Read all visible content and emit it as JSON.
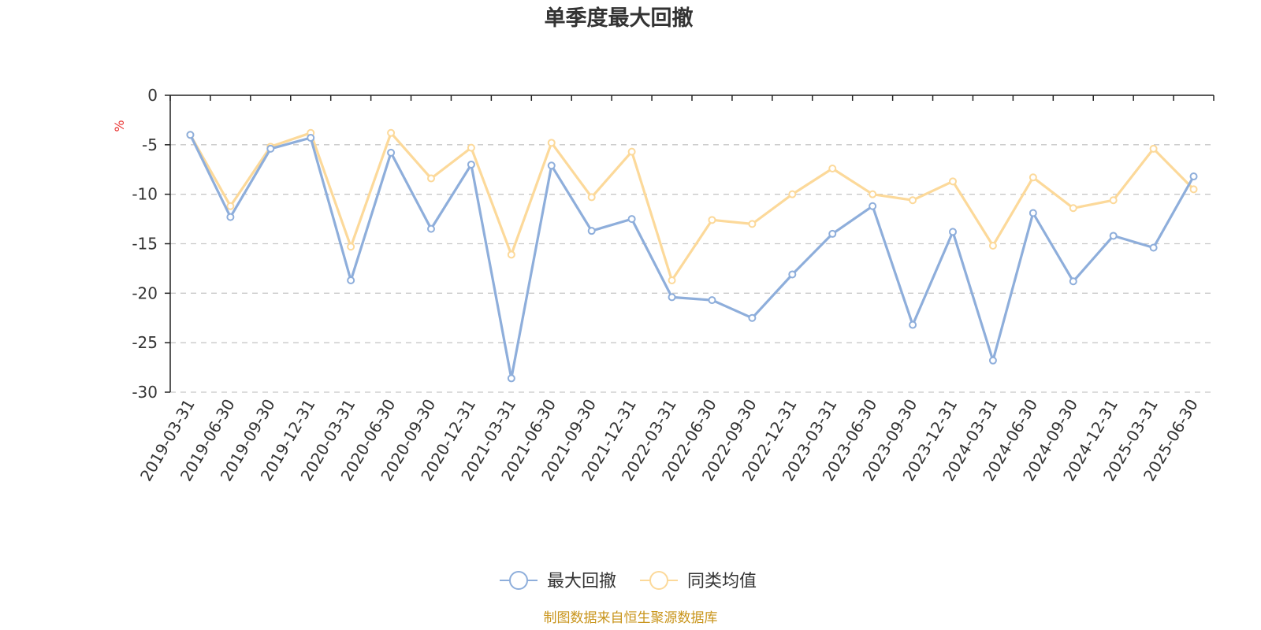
{
  "chart_data": {
    "type": "line",
    "title": "单季度最大回撤",
    "ylabel": "%",
    "ylim": [
      -30,
      0
    ],
    "yticks": [
      0,
      -5,
      -10,
      -15,
      -20,
      -25,
      -30
    ],
    "grid": true,
    "legend_position": "bottom",
    "categories": [
      "2019-03-31",
      "2019-06-30",
      "2019-09-30",
      "2019-12-31",
      "2020-03-31",
      "2020-06-30",
      "2020-09-30",
      "2020-12-31",
      "2021-03-31",
      "2021-06-30",
      "2021-09-30",
      "2021-12-31",
      "2022-03-31",
      "2022-06-30",
      "2022-09-30",
      "2022-12-31",
      "2023-03-31",
      "2023-06-30",
      "2023-09-30",
      "2023-12-31",
      "2024-03-31",
      "2024-06-30",
      "2024-09-30",
      "2024-12-31",
      "2025-03-31",
      "2025-06-30"
    ],
    "series": [
      {
        "name": "最大回撤",
        "color": "#8eaedb",
        "values": [
          -4.0,
          -12.3,
          -5.4,
          -4.3,
          -18.7,
          -5.8,
          -13.5,
          -7.0,
          -28.6,
          -7.1,
          -13.7,
          -12.5,
          -20.4,
          -20.7,
          -22.5,
          -18.1,
          -14.0,
          -11.2,
          -23.2,
          -13.8,
          -26.8,
          -11.9,
          -18.8,
          -14.2,
          -15.4,
          -8.2
        ]
      },
      {
        "name": "同类均值",
        "color": "#fcd99a",
        "values": [
          -4.0,
          -11.2,
          -5.2,
          -3.8,
          -15.3,
          -3.8,
          -8.4,
          -5.3,
          -16.1,
          -4.8,
          -10.3,
          -5.7,
          -18.7,
          -12.6,
          -13.0,
          -10.0,
          -7.4,
          -10.0,
          -10.6,
          -8.7,
          -15.2,
          -8.3,
          -11.4,
          -10.6,
          -5.4,
          -9.5
        ]
      }
    ]
  },
  "footer": {
    "source": "制图数据来自恒生聚源数据库"
  }
}
